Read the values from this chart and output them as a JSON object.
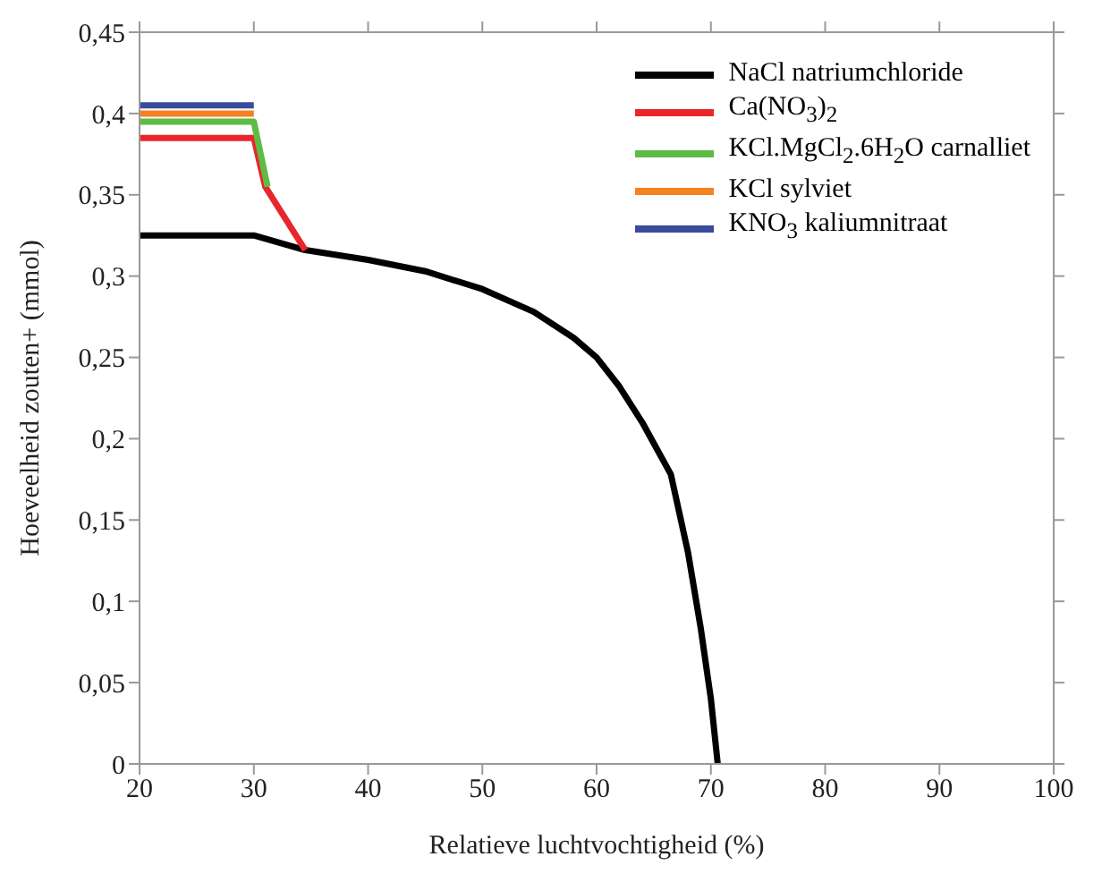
{
  "chart_data": {
    "type": "line",
    "xlabel": "Relatieve luchtvochtigheid (%)",
    "ylabel": "Hoeveelheid zouten+ (mmol)",
    "xlim": [
      20,
      100
    ],
    "xticks": [
      20,
      30,
      40,
      50,
      60,
      70,
      80,
      90,
      100
    ],
    "ylim": [
      0,
      0.45
    ],
    "yticks": [
      {
        "value": 0,
        "label": "0"
      },
      {
        "value": 0.05,
        "label": "0,05"
      },
      {
        "value": 0.1,
        "label": "0,1"
      },
      {
        "value": 0.15,
        "label": "0,15"
      },
      {
        "value": 0.2,
        "label": "0,2"
      },
      {
        "value": 0.25,
        "label": "0,25"
      },
      {
        "value": 0.3,
        "label": "0,3"
      },
      {
        "value": 0.35,
        "label": "0,35"
      },
      {
        "value": 0.4,
        "label": "0,4"
      },
      {
        "value": 0.45,
        "label": "0,45"
      }
    ],
    "grid": false,
    "legend": "top right",
    "marker": "none",
    "line_style": "solid",
    "series": [
      {
        "name": "NaCl natriumchloride",
        "color": "#000000",
        "x": [
          20,
          30,
          34.5,
          40,
          45,
          50,
          54.5,
          58,
          60,
          62,
          64,
          66.5,
          68,
          69.1,
          70,
          70.6
        ],
        "values": [
          0.325,
          0.325,
          0.316,
          0.31,
          0.303,
          0.292,
          0.278,
          0.262,
          0.25,
          0.232,
          0.21,
          0.178,
          0.13,
          0.084,
          0.04,
          0
        ]
      },
      {
        "name": "Ca(NO$_{3}$)$_{2}$",
        "color": "#e8262b",
        "x": [
          20,
          30,
          31,
          34.5
        ],
        "values": [
          0.385,
          0.385,
          0.355,
          0.316
        ]
      },
      {
        "name": "KCl.MgCl$_{2}$.6H$_{2}$O carnalliet",
        "color": "#5dbb46",
        "x": [
          20,
          30,
          31.2
        ],
        "values": [
          0.395,
          0.395,
          0.355
        ]
      },
      {
        "name": "KCl sylviet",
        "color": "#f5821f",
        "x": [
          20,
          30
        ],
        "values": [
          0.4,
          0.4
        ]
      },
      {
        "name": "KNO$_{3}$ kaliumnitraat",
        "color": "#3a4a9c",
        "x": [
          20,
          30
        ],
        "values": [
          0.405,
          0.405
        ]
      }
    ]
  }
}
